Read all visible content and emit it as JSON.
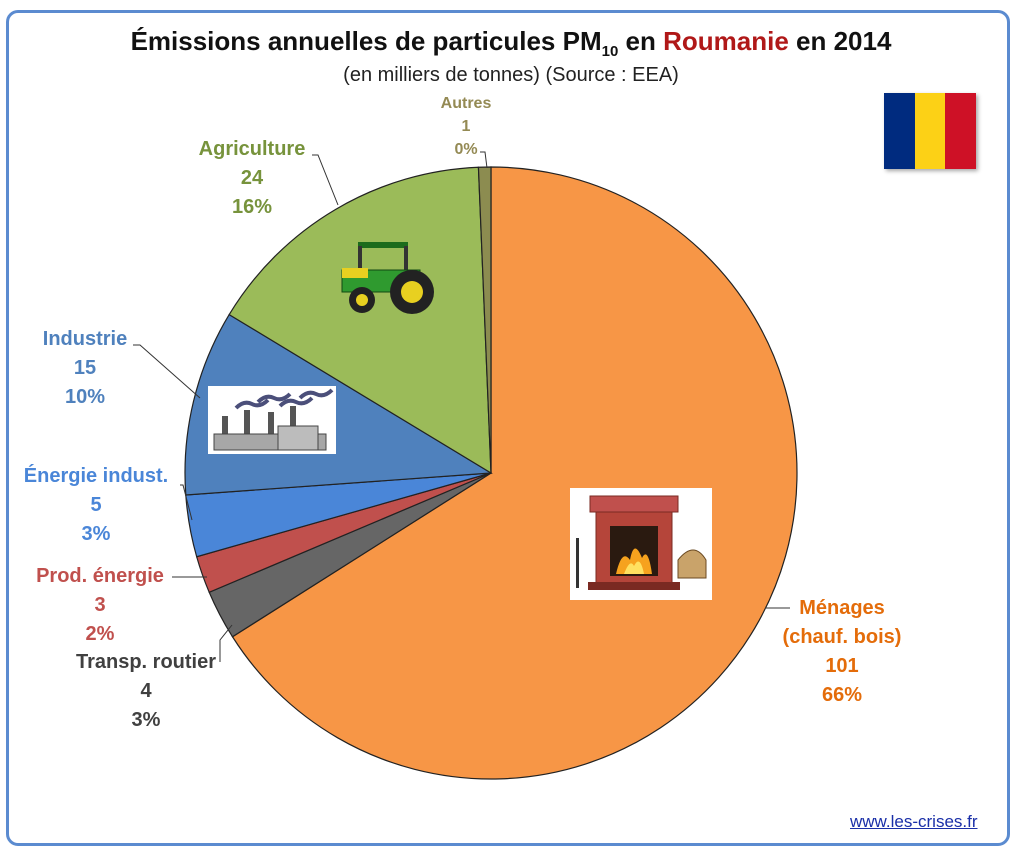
{
  "title": {
    "prefix": "Émissions annuelles de particules PM",
    "subscript": "10",
    "middle": " en ",
    "country": "Roumanie",
    "suffix": " en 2014"
  },
  "subtitle": "(en milliers de tonnes) (Source : EEA)",
  "flag_colors": [
    "#002b7f",
    "#fcd116",
    "#ce1126"
  ],
  "source_link": "www.les-crises.fr",
  "chart_data": {
    "type": "pie",
    "unit": "milliers de tonnes",
    "slices": [
      {
        "name": "Ménages (chauf. bois)",
        "label_lines": [
          "Ménages",
          "(chauf. bois)"
        ],
        "value": 101,
        "percent": "66%",
        "color": "#f79646",
        "text_color": "#e46c0a",
        "icon": "fireplace-icon"
      },
      {
        "name": "Transp. routier",
        "label_lines": [
          "Transp. routier"
        ],
        "value": 4,
        "percent": "3%",
        "color": "#666666",
        "text_color": "#404040",
        "icon": ""
      },
      {
        "name": "Prod. énergie",
        "label_lines": [
          "Prod. énergie"
        ],
        "value": 3,
        "percent": "2%",
        "color": "#c0504d",
        "text_color": "#c0504d",
        "icon": ""
      },
      {
        "name": "Énergie indust.",
        "label_lines": [
          "Énergie indust."
        ],
        "value": 5,
        "percent": "3%",
        "color": "#4a86d8",
        "text_color": "#4a86d8",
        "icon": ""
      },
      {
        "name": "Industrie",
        "label_lines": [
          "Industrie"
        ],
        "value": 15,
        "percent": "10%",
        "color": "#4f81bd",
        "text_color": "#4f81bd",
        "icon": "factory-icon"
      },
      {
        "name": "Agriculture",
        "label_lines": [
          "Agriculture"
        ],
        "value": 24,
        "percent": "16%",
        "color": "#9bbb59",
        "text_color": "#77933c",
        "icon": "tractor-icon"
      },
      {
        "name": "Autres",
        "label_lines": [
          "Autres"
        ],
        "value": 1,
        "percent": "0%",
        "color": "#8c8c50",
        "text_color": "#948a54",
        "icon": ""
      }
    ]
  }
}
